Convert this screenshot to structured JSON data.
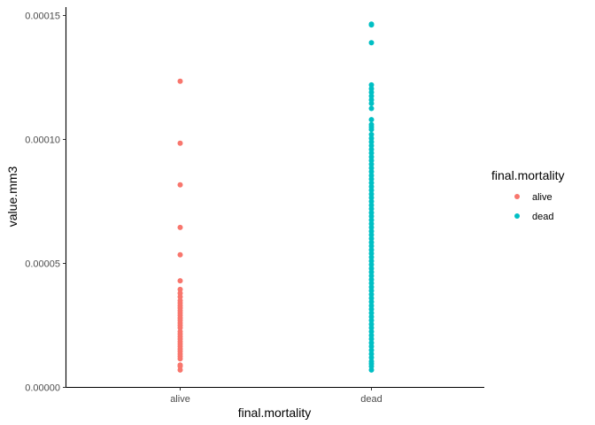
{
  "chart_data": {
    "type": "scatter",
    "title": "",
    "xlabel": "final.mortality",
    "ylabel": "value.mm3",
    "categories": [
      "alive",
      "dead"
    ],
    "ylim": [
      0,
      0.00015
    ],
    "yticks": [
      "0.00000",
      "0.00005",
      "0.00010",
      "0.00015"
    ],
    "ytick_values": [
      0,
      5e-05,
      0.0001,
      0.00015
    ],
    "grid": false,
    "legend": {
      "title": "final.mortality",
      "position": "right",
      "entries": [
        {
          "label": "alive",
          "color": "#F8766D"
        },
        {
          "label": "dead",
          "color": "#00BFC4"
        }
      ]
    },
    "series": [
      {
        "category": "alive",
        "color": "#F8766D",
        "values": [
          0.0001235,
          9.85e-05,
          8.17e-05,
          6.45e-05,
          5.35e-05,
          4.3e-05,
          3.95e-05,
          3.8e-05,
          3.65e-05,
          3.5e-05,
          3.4e-05,
          3.3e-05,
          3.2e-05,
          3.1e-05,
          3e-05,
          2.9e-05,
          2.8e-05,
          2.7e-05,
          2.6e-05,
          2.5e-05,
          2.4e-05,
          2.25e-05,
          2.15e-05,
          2.05e-05,
          1.95e-05,
          1.85e-05,
          1.75e-05,
          1.65e-05,
          1.55e-05,
          1.45e-05,
          1.35e-05,
          1.25e-05,
          1.15e-05,
          9e-06,
          8.5e-06,
          7e-06
        ]
      },
      {
        "category": "dead",
        "color": "#00BFC4",
        "values": [
          0.0001465,
          0.0001462,
          0.000139,
          0.000122,
          0.0001205,
          0.000119,
          0.0001175,
          0.000116,
          0.0001145,
          0.0001125,
          0.000108,
          0.000106,
          0.000105,
          0.000104,
          0.000102,
          0.0001005,
          9.9e-05,
          9.75e-05,
          9.6e-05,
          9.45e-05,
          9.3e-05,
          9.15e-05,
          9e-05,
          8.85e-05,
          8.7e-05,
          8.55e-05,
          8.4e-05,
          8.25e-05,
          8.1e-05,
          7.95e-05,
          7.8e-05,
          7.65e-05,
          7.5e-05,
          7.35e-05,
          7.2e-05,
          7.05e-05,
          6.9e-05,
          6.75e-05,
          6.6e-05,
          6.45e-05,
          6.3e-05,
          6.15e-05,
          6e-05,
          5.85e-05,
          5.7e-05,
          5.55e-05,
          5.4e-05,
          5.25e-05,
          5.1e-05,
          4.95e-05,
          4.8e-05,
          4.65e-05,
          4.5e-05,
          4.35e-05,
          4.2e-05,
          4.05e-05,
          3.9e-05,
          3.75e-05,
          3.6e-05,
          3.45e-05,
          3.3e-05,
          3.15e-05,
          3e-05,
          2.85e-05,
          2.7e-05,
          2.55e-05,
          2.4e-05,
          2.25e-05,
          2.1e-05,
          1.95e-05,
          1.8e-05,
          1.65e-05,
          1.5e-05,
          1.35e-05,
          1.2e-05,
          1.05e-05,
          9.5e-06,
          8.5e-06,
          7e-06
        ]
      }
    ]
  }
}
